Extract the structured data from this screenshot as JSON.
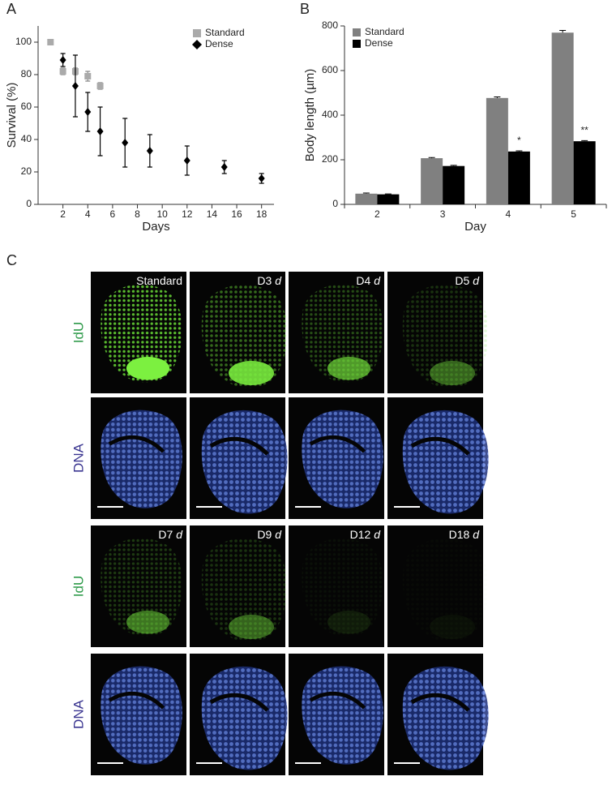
{
  "panel_labels": [
    "A",
    "B",
    "C"
  ],
  "chart_data": [
    {
      "type": "scatter",
      "xlabel": "Days",
      "ylabel": "Survival (%)",
      "xlim": [
        0,
        19
      ],
      "xticks": [
        2,
        4,
        6,
        8,
        10,
        12,
        14,
        16,
        18
      ],
      "ylim": [
        0,
        110
      ],
      "yticks": [
        0,
        20,
        40,
        60,
        80,
        100
      ],
      "legend": "top-right",
      "series": [
        {
          "name": "Standard",
          "color": "#aaaaaa",
          "marker": "square",
          "x": [
            1,
            2,
            3,
            4,
            5
          ],
          "values": [
            100,
            82,
            82,
            79,
            73
          ],
          "errors": [
            0,
            2,
            2,
            3,
            2
          ]
        },
        {
          "name": "Dense",
          "color": "#000000",
          "marker": "diamond",
          "x": [
            2,
            3,
            4,
            5,
            7,
            9,
            12,
            15,
            18
          ],
          "values": [
            89,
            73,
            57,
            45,
            38,
            33,
            27,
            23,
            16
          ],
          "errors": [
            4,
            19,
            12,
            15,
            15,
            10,
            9,
            4,
            3
          ]
        }
      ]
    },
    {
      "type": "bar",
      "xlabel": "Day",
      "ylabel": "Body length (µm)",
      "categories": [
        "2",
        "3",
        "4",
        "5"
      ],
      "ylim": [
        0,
        800
      ],
      "yticks": [
        0,
        200,
        400,
        600,
        800
      ],
      "legend": "top-left",
      "annotations": [
        "*",
        "**"
      ],
      "series": [
        {
          "name": "Standard",
          "color": "#808080",
          "values": [
            48,
            207,
            477,
            770
          ],
          "errors": [
            3,
            3,
            5,
            10
          ]
        },
        {
          "name": "Dense",
          "color": "#000000",
          "values": [
            45,
            172,
            237,
            283
          ],
          "errors": [
            2,
            3,
            3,
            3
          ]
        }
      ]
    }
  ],
  "microscopy": {
    "row_labels": [
      "IdU",
      "DNA",
      "IdU",
      "DNA"
    ],
    "image_labels": [
      [
        [
          "Standard"
        ],
        [
          "D3",
          "d"
        ],
        [
          "D4",
          "d"
        ],
        [
          "D5",
          "d"
        ]
      ],
      [
        [
          "D7",
          "d"
        ],
        [
          "D9",
          "d"
        ],
        [
          "D12",
          "d"
        ],
        [
          "D18",
          "d"
        ]
      ]
    ]
  }
}
